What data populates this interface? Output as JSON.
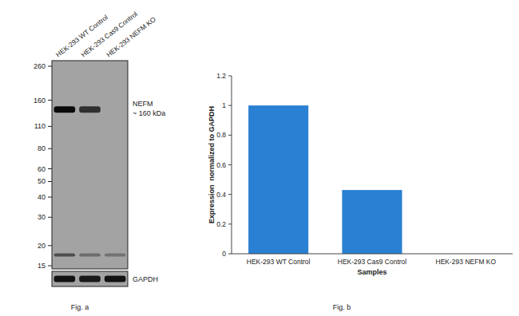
{
  "chart_data": {
    "type": "bar",
    "categories": [
      "HEK-293 WT Control",
      "HEK-293 Cas9 Control",
      "HEK-293 NEFM KO"
    ],
    "values": [
      1,
      0.43,
      0
    ],
    "color": "#2a80d2",
    "ylim": [
      0,
      1.2
    ],
    "yticks": [
      0,
      0.2,
      0.4,
      0.6,
      0.8,
      1,
      1.2
    ],
    "grid": false,
    "x_label": "Samples",
    "y_label": "Expression  normalized to GAPDH",
    "caption": "Fig. b"
  },
  "western_blot": {
    "lanes": [
      "HEK-293 WT Control",
      "HEK-293 Cas9 Control",
      "HEK-293 NEFM KO"
    ],
    "markers": [
      260,
      160,
      110,
      80,
      60,
      50,
      40,
      30,
      20,
      15
    ],
    "target_label": "NEFM",
    "target_size": "~ 160 kDa",
    "target_band": {
      "kda": 140,
      "intensity": [
        1,
        0.75,
        0
      ]
    },
    "low_band": {
      "kda": 17.5,
      "intensity": [
        0.55,
        0.35,
        0.3
      ]
    },
    "loading_control": "GAPDH",
    "loading_intensity": [
      0.95,
      0.9,
      0.95
    ],
    "caption": "Fig. a"
  }
}
